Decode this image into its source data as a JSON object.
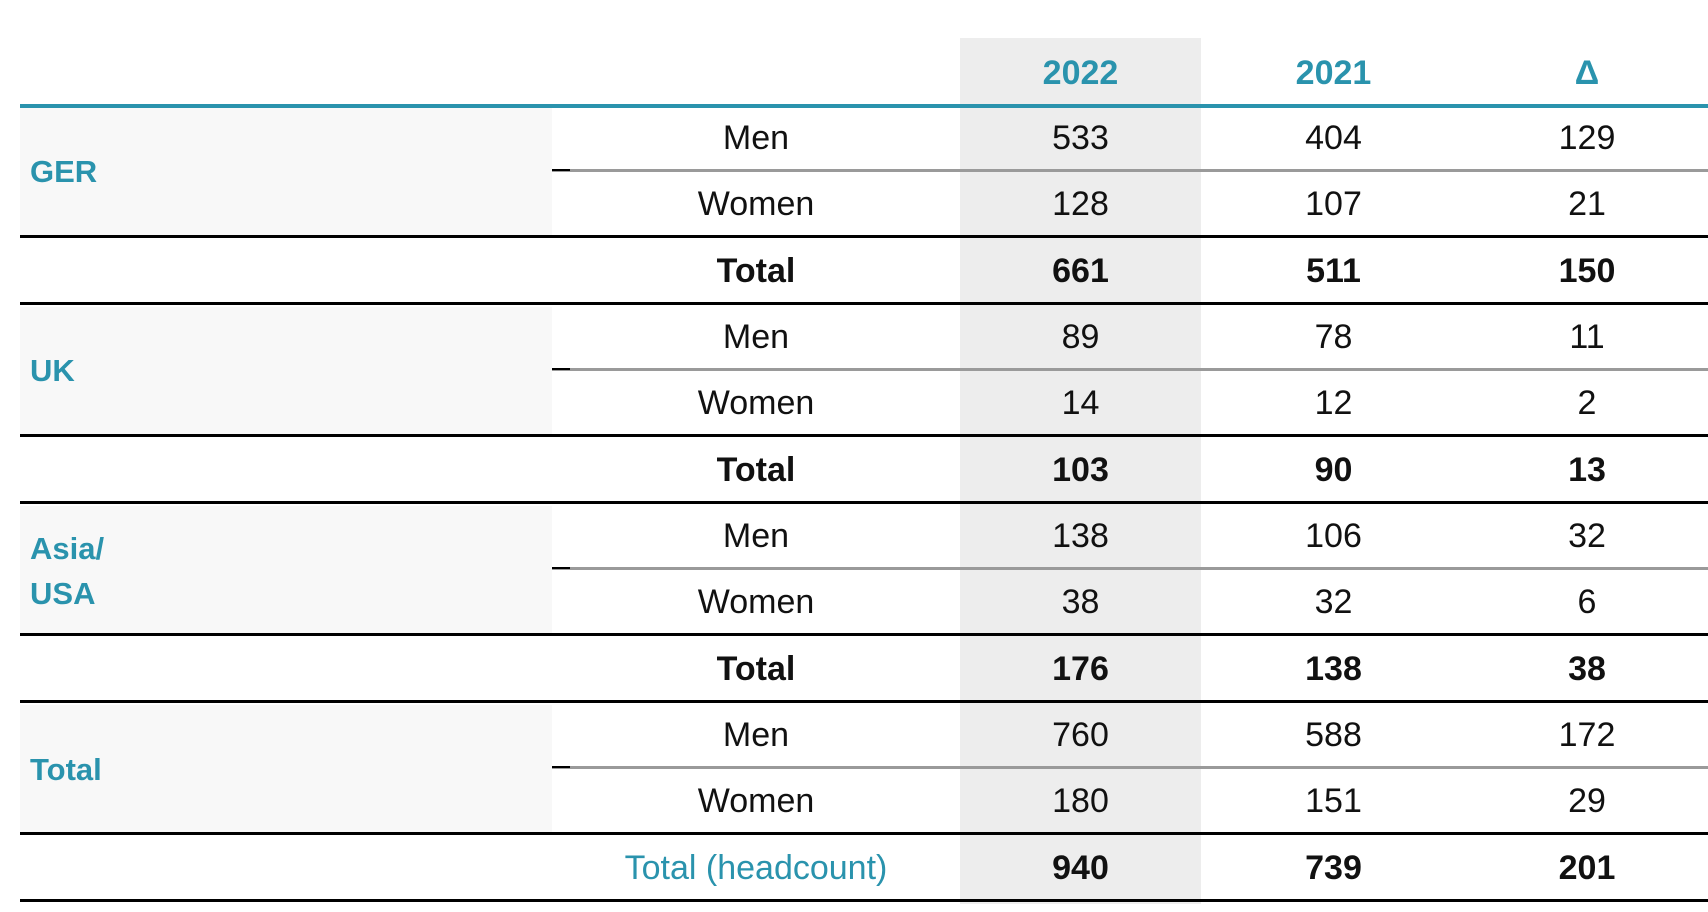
{
  "header": {
    "col_2022": "2022",
    "col_2021": "2021",
    "col_delta": "Δ"
  },
  "groups": [
    {
      "region_lines": [
        "GER"
      ],
      "rows": [
        {
          "label": "Men",
          "v2022": "533",
          "v2021": "404",
          "delta": "129"
        },
        {
          "label": "Women",
          "v2022": "128",
          "v2021": "107",
          "delta": "21"
        }
      ],
      "total": {
        "label": "Total",
        "v2022": "661",
        "v2021": "511",
        "delta": "150"
      }
    },
    {
      "region_lines": [
        "UK"
      ],
      "rows": [
        {
          "label": "Men",
          "v2022": "89",
          "v2021": "78",
          "delta": "11"
        },
        {
          "label": "Women",
          "v2022": "14",
          "v2021": "12",
          "delta": "2"
        }
      ],
      "total": {
        "label": "Total",
        "v2022": "103",
        "v2021": "90",
        "delta": "13"
      }
    },
    {
      "region_lines": [
        "Asia/",
        "USA"
      ],
      "rows": [
        {
          "label": "Men",
          "v2022": "138",
          "v2021": "106",
          "delta": "32"
        },
        {
          "label": "Women",
          "v2022": "38",
          "v2021": "32",
          "delta": "6"
        }
      ],
      "total": {
        "label": "Total",
        "v2022": "176",
        "v2021": "138",
        "delta": "38"
      }
    },
    {
      "region_lines": [
        "Total"
      ],
      "rows": [
        {
          "label": "Men",
          "v2022": "760",
          "v2021": "588",
          "delta": "172"
        },
        {
          "label": "Women",
          "v2022": "180",
          "v2021": "151",
          "delta": "29"
        }
      ],
      "total": {
        "label": "Total (headcount)",
        "v2022": "940",
        "v2021": "739",
        "delta": "201"
      }
    }
  ],
  "colors": {
    "accent": "#2a93ad",
    "shade": "#ededed",
    "region_bg": "#f8f8f8",
    "rule_grey": "#9a9a9a"
  }
}
